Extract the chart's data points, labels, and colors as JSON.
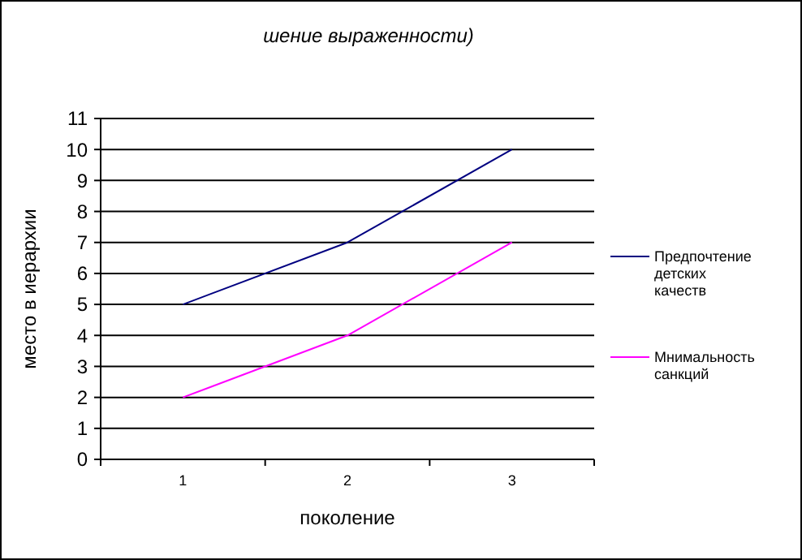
{
  "chart_data": {
    "type": "line",
    "title": "шение выраженности)",
    "xlabel": "поколение",
    "ylabel": "место в иерархии",
    "categories": [
      "1",
      "2",
      "3"
    ],
    "series": [
      {
        "name": "Предпочтение детских качеств",
        "color": "#000080",
        "values": [
          5,
          7,
          10
        ]
      },
      {
        "name": "Мнимальность санкций",
        "color": "#ff00ff",
        "values": [
          2,
          4,
          7
        ]
      }
    ],
    "ylim": [
      0,
      11
    ],
    "yticks": [
      0,
      1,
      2,
      3,
      4,
      5,
      6,
      7,
      8,
      9,
      10,
      11
    ],
    "grid": "y",
    "legend": "right",
    "marker": "none"
  }
}
